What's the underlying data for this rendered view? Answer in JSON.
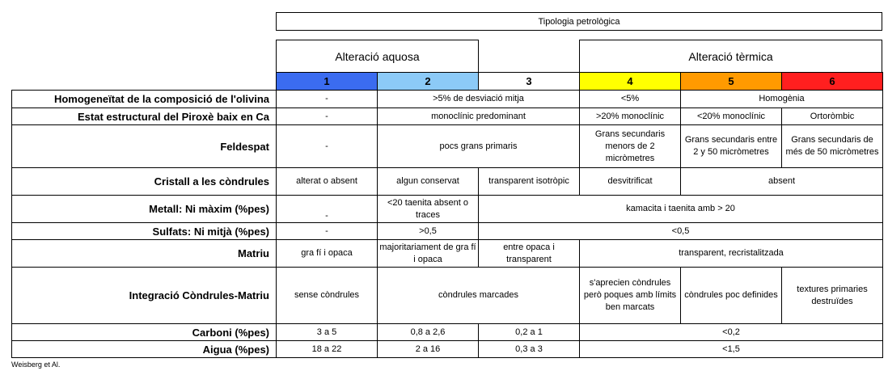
{
  "title": "Tipologia petrològica",
  "groups": {
    "aquosa": "Alteració aquosa",
    "termica": "Alteració tèrmica"
  },
  "types": [
    {
      "num": "1",
      "color": "#3b6cf0"
    },
    {
      "num": "2",
      "color": "#8ccaf7"
    },
    {
      "num": "3",
      "color": "#ffffff"
    },
    {
      "num": "4",
      "color": "#ffff00"
    },
    {
      "num": "5",
      "color": "#ff9a00"
    },
    {
      "num": "6",
      "color": "#ff1f1f"
    }
  ],
  "rows": {
    "olivina": {
      "label": "Homogeneïtat de la composició de l'olivina",
      "c1": "-",
      "c23": ">5% de desviació mitja",
      "c4": "<5%",
      "c56": "Homogènia"
    },
    "piroxe": {
      "label": "Estat estructural del Piroxè baix en Ca",
      "c1": "-",
      "c23": "monoclínic predominant",
      "c4": ">20% monoclínic",
      "c5": "<20% monoclínic",
      "c6": "Ortoròmbic"
    },
    "feldespat": {
      "label": "Feldespat",
      "c1": "-",
      "c23": "pocs grans primaris",
      "c4": "Grans secundaris menors de 2 micròmetres",
      "c5": "Grans secundaris entre 2 y 50 micròmetres",
      "c6": "Grans secundaris de més de 50 micròmetres"
    },
    "cristall": {
      "label": "Cristall  a les còndrules",
      "c1": "alterat o absent",
      "c2": "algun conservat",
      "c3": "transparent isotròpic",
      "c4": "desvitrificat",
      "c56": "absent"
    },
    "metall": {
      "label": "Metall: Ni màxim (%pes)",
      "c1": "-",
      "c2": "<20 taenita absent o traces",
      "c36": "kamacita i taenita amb > 20"
    },
    "sulfats": {
      "label": "Sulfats: Ni mitjà (%pes)",
      "c1": "-",
      "c2": ">0,5",
      "c36": "<0,5"
    },
    "matriu": {
      "label": "Matriu",
      "c1": "gra fí i opaca",
      "c2": "majoritariament de gra fí i opaca",
      "c3": "entre opaca i transparent",
      "c46": "transparent, recristalitzada"
    },
    "integracio": {
      "label": "Integració Còndrules-Matriu",
      "c1": "sense còndrules",
      "c23": "còndrules marcades",
      "c4": "s'aprecien  còndrules però poques amb límits ben  marcats",
      "c5": "còndrules poc definides",
      "c6": "textures primaries destruïdes"
    },
    "carboni": {
      "label": "Carboni (%pes)",
      "c1": "3 a 5",
      "c2": "0,8 a 2,6",
      "c3": "0,2 a 1",
      "c46": "<0,2"
    },
    "aigua": {
      "label": "Aigua (%pes)",
      "c1": "18 a 22",
      "c2": "2 a 16",
      "c3": "0,3 a 3",
      "c46": "<1,5"
    }
  },
  "footnote": "Weisberg et Al."
}
